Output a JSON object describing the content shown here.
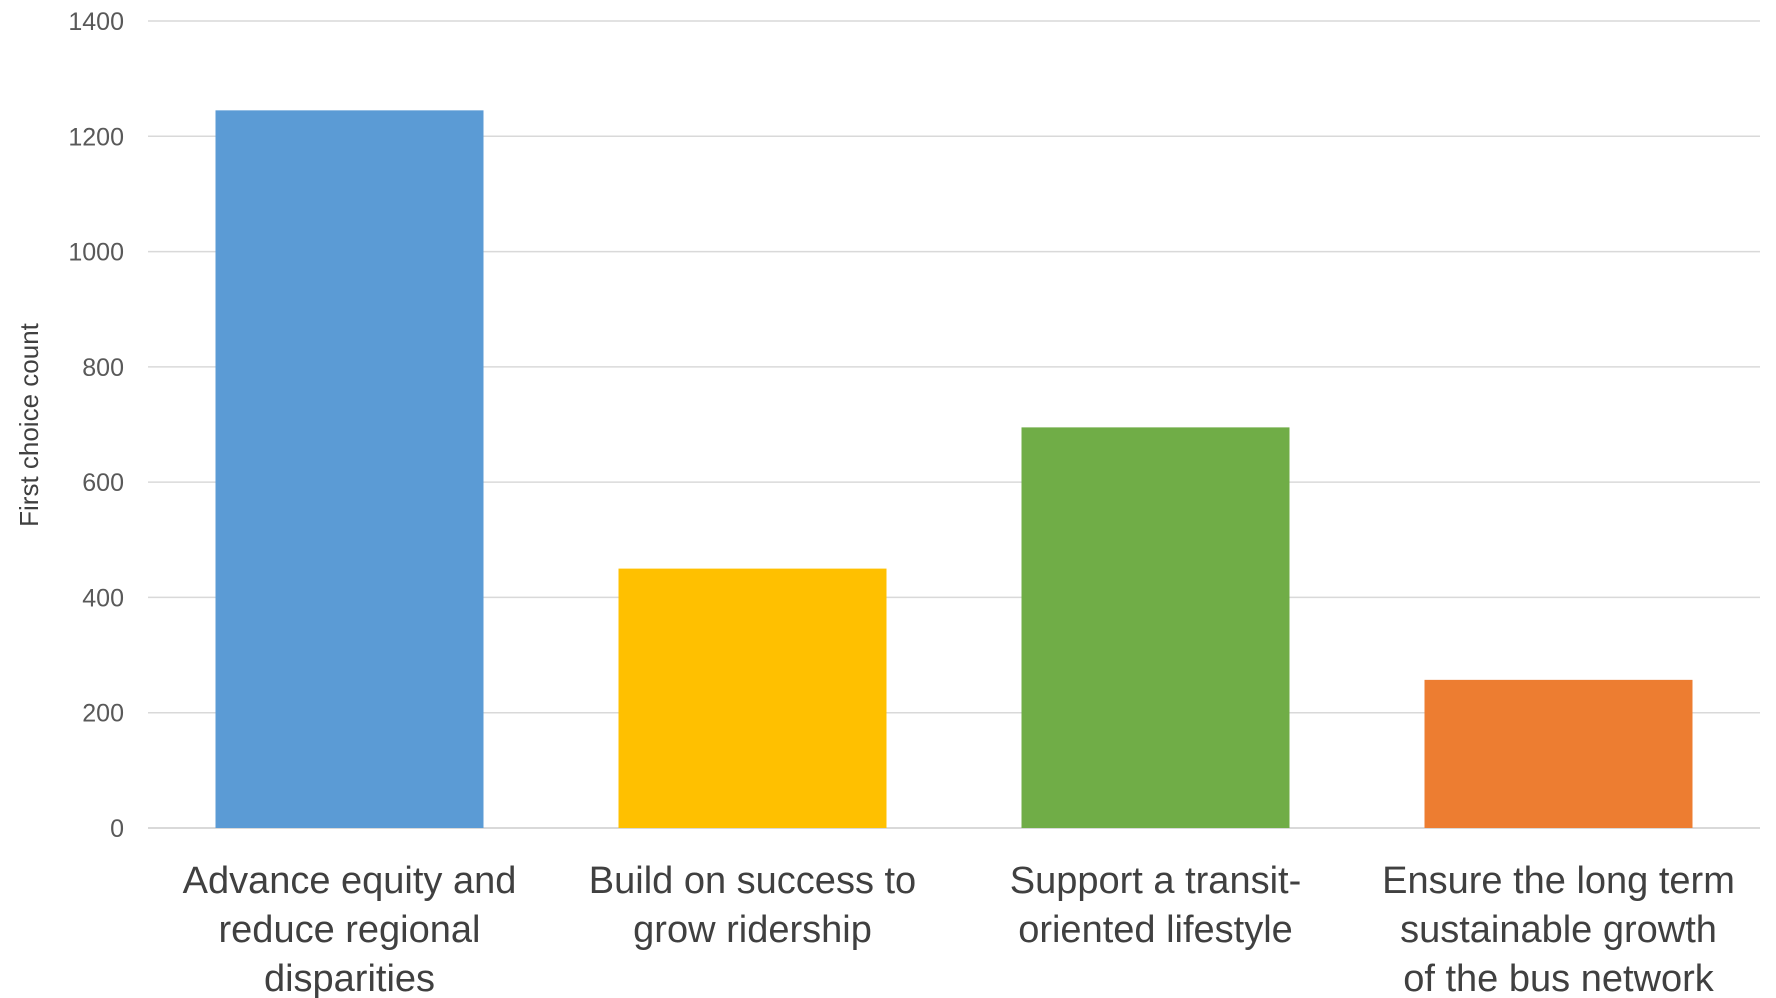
{
  "chart_data": {
    "type": "bar",
    "title": "",
    "xlabel": "",
    "ylabel": "First choice count",
    "ylim": [
      0,
      1400
    ],
    "yticks": [
      0,
      200,
      400,
      600,
      800,
      1000,
      1200,
      1400
    ],
    "grid": true,
    "legend": "none",
    "categories": [
      "Advance equity and reduce regional disparities",
      "Build on success to grow ridership",
      "Support a transit-oriented lifestyle",
      "Ensure the long term sustainable growth of the bus network"
    ],
    "category_label_lines": [
      [
        "Advance equity and",
        "reduce regional",
        "disparities"
      ],
      [
        "Build on success to",
        "grow ridership"
      ],
      [
        "Support a transit-",
        "oriented lifestyle"
      ],
      [
        "Ensure the long term",
        "sustainable growth",
        "of the bus network"
      ]
    ],
    "values": [
      1245,
      450,
      695,
      257
    ],
    "colors": [
      "#5B9BD5",
      "#FFC000",
      "#70AD47",
      "#ED7D31"
    ]
  },
  "style": {
    "grid_color": "#D9D9D9",
    "axis_color": "#D9D9D9"
  }
}
